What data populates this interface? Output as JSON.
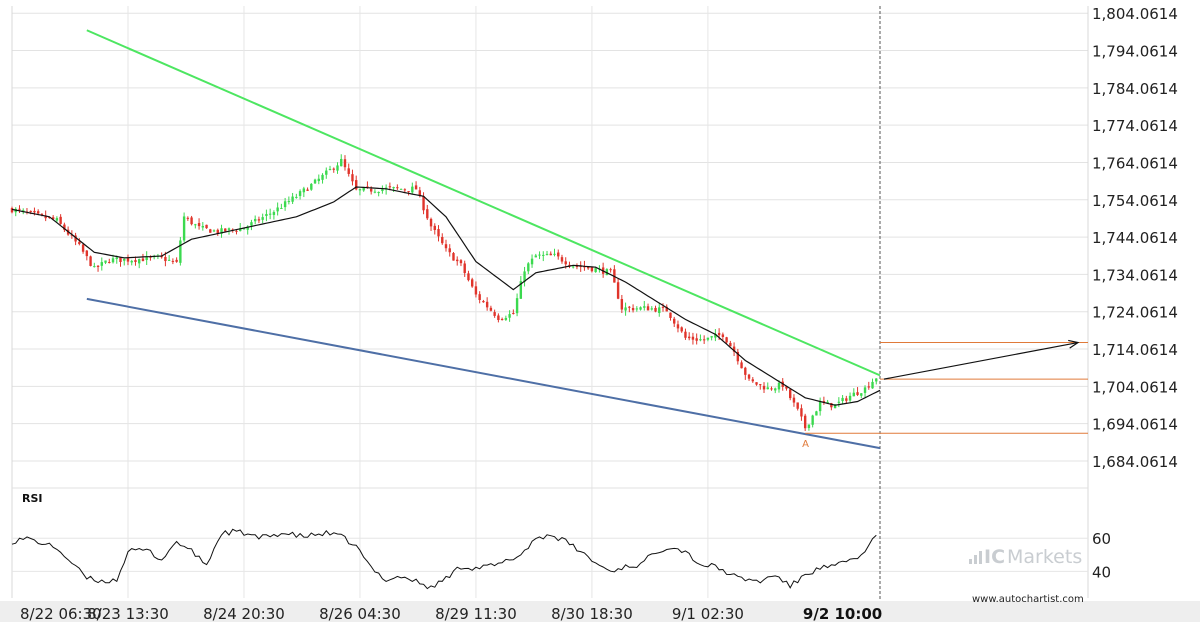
{
  "chart_data": {
    "type": "candlestick",
    "instrument_note": "",
    "title": "",
    "price_axis": {
      "ticks": [
        1804.0614,
        1794.0614,
        1784.0614,
        1774.0614,
        1764.0614,
        1754.0614,
        1744.0614,
        1734.0614,
        1724.0614,
        1714.0614,
        1704.0614,
        1694.0614,
        1684.0614
      ],
      "tick_labels": [
        "1,804.0614",
        "1,794.0614",
        "1,784.0614",
        "1,774.0614",
        "1,764.0614",
        "1,754.0614",
        "1,744.0614",
        "1,734.0614",
        "1,724.0614",
        "1,714.0614",
        "1,704.0614",
        "1,694.0614",
        "1,684.0614"
      ],
      "range": [
        1679.5,
        1806.0
      ]
    },
    "time_axis": {
      "labels": [
        "8/22 06:30",
        "8/23 13:30",
        "8/24 20:30",
        "8/26 04:30",
        "8/29 11:30",
        "8/30 18:30",
        "9/1 02:30",
        "9/2 10:00"
      ],
      "highlight_label": "9/2 10:00",
      "bar_index_of_labels": [
        0,
        31,
        62,
        93,
        124,
        155,
        186,
        222
      ]
    },
    "candles": {
      "count": 232,
      "bullish_color": "#3bd94f",
      "bearish_color": "#e0342b",
      "anchors": [
        [
          0,
          1751.5
        ],
        [
          12,
          1748.5
        ],
        [
          18,
          1741.5
        ],
        [
          22,
          1735.5
        ],
        [
          26,
          1738.0
        ],
        [
          31,
          1738.0
        ],
        [
          40,
          1738.5
        ],
        [
          44,
          1737.0
        ],
        [
          46,
          1749.5
        ],
        [
          50,
          1746.5
        ],
        [
          55,
          1745.5
        ],
        [
          62,
          1746.5
        ],
        [
          70,
          1751.0
        ],
        [
          76,
          1755.0
        ],
        [
          82,
          1759.5
        ],
        [
          88,
          1764.5
        ],
        [
          92,
          1756.5
        ],
        [
          100,
          1757.0
        ],
        [
          108,
          1757.0
        ],
        [
          112,
          1747.0
        ],
        [
          116,
          1740.5
        ],
        [
          120,
          1736.5
        ],
        [
          124,
          1728.5
        ],
        [
          130,
          1722.5
        ],
        [
          134,
          1723.5
        ],
        [
          137,
          1735.5
        ],
        [
          140,
          1739.0
        ],
        [
          145,
          1739.0
        ],
        [
          150,
          1736.5
        ],
        [
          156,
          1735.5
        ],
        [
          160,
          1734.5
        ],
        [
          163,
          1725.0
        ],
        [
          170,
          1725.0
        ],
        [
          175,
          1724.5
        ],
        [
          180,
          1717.0
        ],
        [
          185,
          1716.5
        ],
        [
          190,
          1718.0
        ],
        [
          193,
          1713.5
        ],
        [
          197,
          1705.5
        ],
        [
          202,
          1703.5
        ],
        [
          206,
          1704.5
        ],
        [
          210,
          1697.5
        ],
        [
          212,
          1693.0
        ],
        [
          216,
          1699.5
        ],
        [
          220,
          1699.0
        ],
        [
          224,
          1701.5
        ],
        [
          228,
          1703.5
        ],
        [
          231,
          1706.5
        ]
      ]
    },
    "moving_average": {
      "color": "#111111",
      "anchors": [
        [
          0,
          1751.5
        ],
        [
          10,
          1749.5
        ],
        [
          22,
          1740.0
        ],
        [
          30,
          1738.5
        ],
        [
          40,
          1739.0
        ],
        [
          48,
          1743.5
        ],
        [
          62,
          1746.5
        ],
        [
          76,
          1749.5
        ],
        [
          86,
          1753.5
        ],
        [
          92,
          1757.5
        ],
        [
          100,
          1757.0
        ],
        [
          110,
          1755.0
        ],
        [
          116,
          1749.5
        ],
        [
          124,
          1737.5
        ],
        [
          134,
          1730.0
        ],
        [
          140,
          1734.5
        ],
        [
          150,
          1736.5
        ],
        [
          156,
          1736.0
        ],
        [
          164,
          1732.0
        ],
        [
          172,
          1727.0
        ],
        [
          180,
          1722.0
        ],
        [
          188,
          1718.0
        ],
        [
          196,
          1711.0
        ],
        [
          204,
          1706.0
        ],
        [
          212,
          1701.0
        ],
        [
          220,
          1699.0
        ],
        [
          226,
          1700.0
        ],
        [
          232,
          1703.0
        ]
      ]
    },
    "resistance_line": {
      "color": "#4de661",
      "points": [
        [
          20,
          1799.5
        ],
        [
          232,
          1707.0
        ]
      ]
    },
    "support_line": {
      "color": "#4e6fa6",
      "points": [
        [
          20,
          1727.5
        ],
        [
          232,
          1687.5
        ]
      ]
    },
    "levels": {
      "color": "#e07a3a",
      "lines": [
        {
          "value": 1715.8,
          "from_bar": 232
        },
        {
          "value": 1706.0,
          "from_bar": 232
        },
        {
          "value": 1691.5,
          "from_bar": 212
        }
      ]
    },
    "forecast_arrow": {
      "color": "#111111",
      "from": [
        232,
        1706.0
      ],
      "to_value": 1715.8
    },
    "point_label": {
      "text": "A",
      "bar": 212,
      "value": 1691.5
    },
    "current_time_bar": 232,
    "rsi": {
      "label": "RSI",
      "ticks": [
        60,
        40
      ],
      "range": [
        24,
        83
      ],
      "anchors": [
        [
          0,
          58
        ],
        [
          4,
          60
        ],
        [
          8,
          57
        ],
        [
          12,
          54
        ],
        [
          16,
          45
        ],
        [
          20,
          36
        ],
        [
          24,
          34
        ],
        [
          28,
          35
        ],
        [
          31,
          52
        ],
        [
          36,
          53
        ],
        [
          40,
          47
        ],
        [
          44,
          58
        ],
        [
          48,
          52
        ],
        [
          52,
          44
        ],
        [
          56,
          63
        ],
        [
          60,
          64
        ],
        [
          62,
          63
        ],
        [
          66,
          60
        ],
        [
          72,
          63
        ],
        [
          78,
          61
        ],
        [
          84,
          63
        ],
        [
          88,
          61
        ],
        [
          92,
          55
        ],
        [
          96,
          42
        ],
        [
          100,
          35
        ],
        [
          104,
          37
        ],
        [
          108,
          34
        ],
        [
          112,
          30
        ],
        [
          116,
          36
        ],
        [
          120,
          43
        ],
        [
          124,
          42
        ],
        [
          130,
          44
        ],
        [
          136,
          50
        ],
        [
          140,
          60
        ],
        [
          144,
          62
        ],
        [
          148,
          58
        ],
        [
          152,
          52
        ],
        [
          156,
          45
        ],
        [
          160,
          40
        ],
        [
          164,
          43
        ],
        [
          168,
          44
        ],
        [
          172,
          52
        ],
        [
          176,
          55
        ],
        [
          180,
          52
        ],
        [
          184,
          44
        ],
        [
          188,
          43
        ],
        [
          194,
          36
        ],
        [
          200,
          34
        ],
        [
          204,
          38
        ],
        [
          208,
          31
        ],
        [
          212,
          38
        ],
        [
          216,
          42
        ],
        [
          220,
          43
        ],
        [
          224,
          47
        ],
        [
          228,
          51
        ],
        [
          231,
          63
        ]
      ]
    }
  },
  "branding": {
    "ic_text": "IC",
    "markets_text": "Markets",
    "credit_text": "www.autochartist.com"
  }
}
